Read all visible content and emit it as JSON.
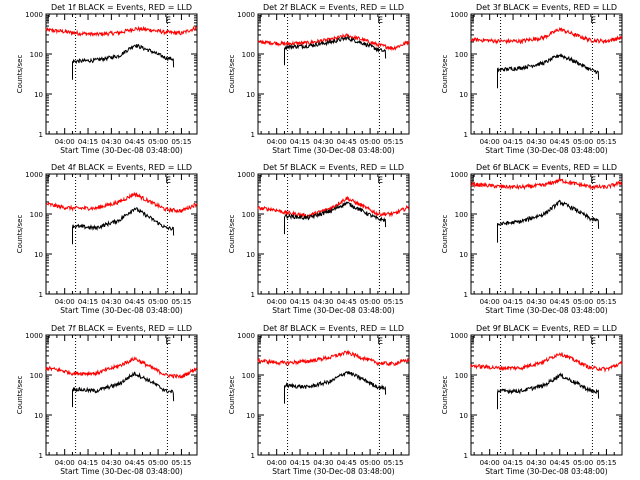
{
  "colors": {
    "events": "#000000",
    "lld": "#ff0000",
    "axes": "#000000",
    "background": "#ffffff"
  },
  "chart_data": [
    {
      "type": "line",
      "title": "Det 1f BLACK = Events, RED = LLD",
      "xlabel": "Start Time (30-Dec-08 03:48:00)",
      "ylabel": "Counts/sec",
      "xlim": [
        "03:48",
        "05:25"
      ],
      "ylim": [
        1,
        1000
      ],
      "yscale": "log",
      "xticks": [
        "04:00",
        "04:15",
        "04:30",
        "04:45",
        "05:00",
        "05:15"
      ],
      "yticks": [
        "1",
        "10",
        "100",
        "1000"
      ],
      "markers": [
        {
          "time": "04:07",
          "label": ""
        },
        {
          "time": "05:06",
          "label": "E"
        }
      ],
      "x": [
        "03:48",
        "03:58",
        "04:05",
        "04:20",
        "04:35",
        "04:45",
        "04:55",
        "05:05",
        "05:15",
        "05:25"
      ],
      "series": [
        {
          "name": "LLD",
          "color": "#ff0000",
          "values": [
            400,
            370,
            340,
            310,
            340,
            430,
            400,
            350,
            330,
            460
          ]
        },
        {
          "name": "Events",
          "color": "#000000",
          "start": "04:05",
          "end": "05:10",
          "values": [
            null,
            null,
            65,
            70,
            90,
            170,
            120,
            80,
            70,
            null
          ]
        }
      ]
    },
    {
      "type": "line",
      "title": "Det 2f BLACK = Events, RED = LLD",
      "xlabel": "Start Time (30-Dec-08 03:48:00)",
      "ylabel": "Counts/sec",
      "xlim": [
        "03:48",
        "05:25"
      ],
      "ylim": [
        1,
        1000
      ],
      "yscale": "log",
      "xticks": [
        "04:00",
        "04:15",
        "04:30",
        "04:45",
        "05:00",
        "05:15"
      ],
      "yticks": [
        "1",
        "10",
        "100",
        "1000"
      ],
      "markers": [
        {
          "time": "04:07",
          "label": ""
        },
        {
          "time": "05:06",
          "label": "E"
        }
      ],
      "x": [
        "03:48",
        "03:58",
        "04:05",
        "04:20",
        "04:35",
        "04:45",
        "04:55",
        "05:05",
        "05:15",
        "05:25"
      ],
      "series": [
        {
          "name": "LLD",
          "color": "#ff0000",
          "values": [
            200,
            190,
            180,
            190,
            230,
            290,
            230,
            170,
            140,
            200
          ]
        },
        {
          "name": "Events",
          "color": "#000000",
          "start": "04:05",
          "end": "05:10",
          "values": [
            null,
            null,
            150,
            160,
            200,
            250,
            190,
            130,
            100,
            null
          ]
        }
      ]
    },
    {
      "type": "line",
      "title": "Det 3f BLACK = Events, RED = LLD",
      "xlabel": "Start Time (30-Dec-08 03:48:00)",
      "ylabel": "Counts/sec",
      "xlim": [
        "03:48",
        "05:25"
      ],
      "ylim": [
        1,
        1000
      ],
      "yscale": "log",
      "xticks": [
        "04:00",
        "04:15",
        "04:30",
        "04:45",
        "05:00",
        "05:15"
      ],
      "yticks": [
        "1",
        "10",
        "100",
        "1000"
      ],
      "markers": [
        {
          "time": "04:07",
          "label": ""
        },
        {
          "time": "05:06",
          "label": "E"
        }
      ],
      "x": [
        "03:48",
        "03:58",
        "04:05",
        "04:20",
        "04:35",
        "04:45",
        "04:55",
        "05:05",
        "05:15",
        "05:25"
      ],
      "series": [
        {
          "name": "LLD",
          "color": "#ff0000",
          "values": [
            230,
            220,
            210,
            210,
            260,
            420,
            300,
            220,
            210,
            260
          ]
        },
        {
          "name": "Events",
          "color": "#000000",
          "start": "04:05",
          "end": "05:10",
          "values": [
            null,
            null,
            40,
            45,
            60,
            95,
            65,
            40,
            30,
            null
          ]
        }
      ]
    },
    {
      "type": "line",
      "title": "Det 4f BLACK = Events, RED = LLD",
      "xlabel": "Start Time (30-Dec-08 03:48:00)",
      "ylabel": "Counts/sec",
      "xlim": [
        "03:48",
        "05:25"
      ],
      "ylim": [
        1,
        1000
      ],
      "yscale": "log",
      "xticks": [
        "04:00",
        "04:15",
        "04:30",
        "04:45",
        "05:00",
        "05:15"
      ],
      "yticks": [
        "1",
        "10",
        "100",
        "1000"
      ],
      "markers": [
        {
          "time": "04:07",
          "label": ""
        },
        {
          "time": "05:06",
          "label": "E"
        }
      ],
      "x": [
        "03:48",
        "03:58",
        "04:05",
        "04:20",
        "04:35",
        "04:45",
        "04:55",
        "05:05",
        "05:15",
        "05:25"
      ],
      "series": [
        {
          "name": "LLD",
          "color": "#ff0000",
          "values": [
            180,
            150,
            140,
            140,
            200,
            320,
            200,
            130,
            120,
            180
          ]
        },
        {
          "name": "Events",
          "color": "#000000",
          "start": "04:05",
          "end": "05:10",
          "values": [
            null,
            null,
            50,
            45,
            70,
            140,
            80,
            45,
            40,
            null
          ]
        }
      ]
    },
    {
      "type": "line",
      "title": "Det 5f BLACK = Events, RED = LLD",
      "xlabel": "Start Time (30-Dec-08 03:48:00)",
      "ylabel": "Counts/sec",
      "xlim": [
        "03:48",
        "05:25"
      ],
      "ylim": [
        1,
        1000
      ],
      "yscale": "log",
      "xticks": [
        "04:00",
        "04:15",
        "04:30",
        "04:45",
        "05:00",
        "05:15"
      ],
      "yticks": [
        "1",
        "10",
        "100",
        "1000"
      ],
      "markers": [
        {
          "time": "04:07",
          "label": ""
        },
        {
          "time": "05:06",
          "label": "E"
        }
      ],
      "x": [
        "03:48",
        "03:58",
        "04:05",
        "04:20",
        "04:35",
        "04:45",
        "04:55",
        "05:05",
        "05:15",
        "05:25"
      ],
      "series": [
        {
          "name": "LLD",
          "color": "#ff0000",
          "values": [
            140,
            130,
            110,
            90,
            140,
            250,
            160,
            100,
            100,
            150
          ]
        },
        {
          "name": "Events",
          "color": "#000000",
          "start": "04:05",
          "end": "05:10",
          "values": [
            null,
            null,
            90,
            80,
            120,
            190,
            120,
            75,
            65,
            null
          ]
        }
      ]
    },
    {
      "type": "line",
      "title": "Det 6f BLACK = Events, RED = LLD",
      "xlabel": "Start Time (30-Dec-08 03:48:00)",
      "ylabel": "Counts/sec",
      "xlim": [
        "03:48",
        "05:25"
      ],
      "ylim": [
        1,
        1000
      ],
      "yscale": "log",
      "xticks": [
        "04:00",
        "04:15",
        "04:30",
        "04:45",
        "05:00",
        "05:15"
      ],
      "yticks": [
        "1",
        "10",
        "100",
        "1000"
      ],
      "markers": [
        {
          "time": "04:07",
          "label": ""
        },
        {
          "time": "05:06",
          "label": "E"
        }
      ],
      "x": [
        "03:48",
        "03:58",
        "04:05",
        "04:20",
        "04:35",
        "04:45",
        "04:55",
        "05:05",
        "05:15",
        "05:25"
      ],
      "series": [
        {
          "name": "LLD",
          "color": "#ff0000",
          "values": [
            560,
            520,
            490,
            470,
            530,
            700,
            570,
            480,
            470,
            620
          ]
        },
        {
          "name": "Events",
          "color": "#000000",
          "start": "04:05",
          "end": "05:10",
          "values": [
            null,
            null,
            55,
            65,
            100,
            200,
            130,
            75,
            60,
            null
          ]
        }
      ]
    },
    {
      "type": "line",
      "title": "Det 7f BLACK = Events, RED = LLD",
      "xlabel": "Start Time (30-Dec-08 03:48:00)",
      "ylabel": "Counts/sec",
      "xlim": [
        "03:48",
        "05:25"
      ],
      "ylim": [
        1,
        1000
      ],
      "yscale": "log",
      "xticks": [
        "04:00",
        "04:15",
        "04:30",
        "04:45",
        "05:00",
        "05:15"
      ],
      "yticks": [
        "1",
        "10",
        "100",
        "1000"
      ],
      "markers": [
        {
          "time": "04:07",
          "label": ""
        },
        {
          "time": "05:06",
          "label": "E"
        }
      ],
      "x": [
        "03:48",
        "03:58",
        "04:05",
        "04:20",
        "04:35",
        "04:45",
        "04:55",
        "05:05",
        "05:15",
        "05:25"
      ],
      "series": [
        {
          "name": "LLD",
          "color": "#ff0000",
          "values": [
            150,
            130,
            110,
            110,
            170,
            260,
            160,
            100,
            90,
            150
          ]
        },
        {
          "name": "Events",
          "color": "#000000",
          "start": "04:05",
          "end": "05:10",
          "values": [
            null,
            null,
            45,
            40,
            60,
            110,
            70,
            40,
            35,
            null
          ]
        }
      ]
    },
    {
      "type": "line",
      "title": "Det 8f BLACK = Events, RED = LLD",
      "xlabel": "Start Time (30-Dec-08 03:48:00)",
      "ylabel": "Counts/sec",
      "xlim": [
        "03:48",
        "05:25"
      ],
      "ylim": [
        1,
        1000
      ],
      "yscale": "log",
      "xticks": [
        "04:00",
        "04:15",
        "04:30",
        "04:45",
        "05:00",
        "05:15"
      ],
      "yticks": [
        "1",
        "10",
        "100",
        "1000"
      ],
      "markers": [
        {
          "time": "04:07",
          "label": ""
        },
        {
          "time": "05:06",
          "label": "E"
        }
      ],
      "x": [
        "03:48",
        "03:58",
        "04:05",
        "04:20",
        "04:35",
        "04:45",
        "04:55",
        "05:05",
        "05:15",
        "05:25"
      ],
      "series": [
        {
          "name": "LLD",
          "color": "#ff0000",
          "values": [
            230,
            210,
            200,
            220,
            280,
            370,
            270,
            200,
            190,
            240
          ]
        },
        {
          "name": "Events",
          "color": "#000000",
          "start": "04:05",
          "end": "05:10",
          "values": [
            null,
            null,
            55,
            50,
            70,
            120,
            80,
            50,
            45,
            null
          ]
        }
      ]
    },
    {
      "type": "line",
      "title": "Det 9f BLACK = Events, RED = LLD",
      "xlabel": "Start Time (30-Dec-08 03:48:00)",
      "ylabel": "Counts/sec",
      "xlim": [
        "03:48",
        "05:25"
      ],
      "ylim": [
        1,
        1000
      ],
      "yscale": "log",
      "xticks": [
        "04:00",
        "04:15",
        "04:30",
        "04:45",
        "05:00",
        "05:15"
      ],
      "yticks": [
        "1",
        "10",
        "100",
        "1000"
      ],
      "markers": [
        {
          "time": "04:07",
          "label": ""
        },
        {
          "time": "05:06",
          "label": "E"
        }
      ],
      "x": [
        "03:48",
        "03:58",
        "04:05",
        "04:20",
        "04:35",
        "04:45",
        "04:55",
        "05:05",
        "05:15",
        "05:25"
      ],
      "series": [
        {
          "name": "LLD",
          "color": "#ff0000",
          "values": [
            170,
            160,
            150,
            150,
            220,
            350,
            230,
            150,
            140,
            200
          ]
        },
        {
          "name": "Events",
          "color": "#000000",
          "start": "04:05",
          "end": "05:10",
          "values": [
            null,
            null,
            40,
            40,
            55,
            100,
            65,
            40,
            35,
            null
          ]
        }
      ]
    }
  ]
}
